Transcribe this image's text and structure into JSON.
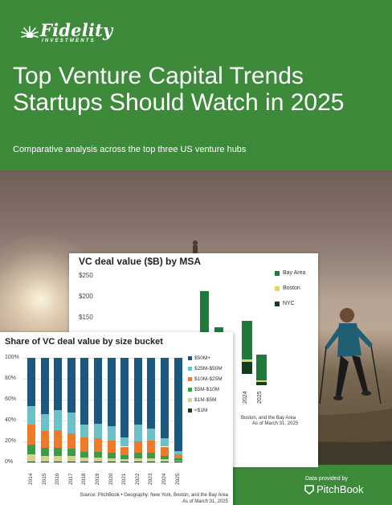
{
  "brand": {
    "logo_word": "Fidelity",
    "logo_sub": "INVESTMENTS"
  },
  "hero": {
    "title_line1": "Top Venture Capital Trends",
    "title_line2": "Startups Should Watch in 2025",
    "subtitle": "Comparative analysis across the top three US venture hubs"
  },
  "provider": {
    "label": "Data provided by",
    "name": "PitchBook"
  },
  "colors": {
    "brand_green": "#3d8a3a",
    "bay_area": "#1f7a3a",
    "boston": "#e6d36e",
    "nyc": "#0f3f1f",
    "s50m_plus": "#1b577f",
    "s25_50m": "#6cc0c8",
    "s10_25m": "#ef7a2a",
    "s5_10m": "#3c9b45",
    "s1_5m": "#d8cf8a",
    "s_lt1m": "#173a1f"
  },
  "chart_data": [
    {
      "type": "bar",
      "title": "VC deal value ($B) by MSA",
      "ytick_labels": [
        "$250",
        "$200",
        "$150"
      ],
      "x": [
        "2024",
        "2025"
      ],
      "series": [
        {
          "name": "Bay Area"
        },
        {
          "name": "Boston"
        },
        {
          "name": "NYC"
        }
      ],
      "footer_line1": "Boston, and the Bay Area",
      "footer_line2": "As of March 31, 2025"
    },
    {
      "type": "bar",
      "stacked": true,
      "title": "Share of VC deal value by size bucket",
      "ytick_labels": [
        "100%",
        "80%",
        "60%",
        "40%",
        "20%",
        "0%"
      ],
      "ylim": [
        0,
        100
      ],
      "categories": [
        "2014",
        "2015",
        "2016",
        "2017",
        "2018",
        "2019",
        "2020",
        "2021",
        "2022",
        "2023",
        "2024",
        "2025"
      ],
      "series": [
        {
          "name": "<$1M",
          "values": [
            1,
            1,
            1,
            1,
            1,
            1,
            1,
            1,
            1,
            1,
            1,
            0.5
          ]
        },
        {
          "name": "$1M-$5M",
          "values": [
            7,
            5,
            5,
            5,
            4,
            4,
            3,
            2,
            3,
            3,
            2,
            1
          ]
        },
        {
          "name": "$5M-$10M",
          "values": [
            9,
            8,
            8,
            7,
            5,
            5,
            5,
            4,
            5,
            5,
            3,
            2
          ]
        },
        {
          "name": "$10M-$25M",
          "values": [
            19,
            16,
            17,
            15,
            14,
            13,
            12,
            8,
            11,
            12,
            9,
            4
          ]
        },
        {
          "name": "$25M-$50M",
          "values": [
            18,
            16,
            19,
            20,
            12,
            14,
            14,
            9,
            16,
            11,
            8,
            3
          ]
        },
        {
          "name": "$50M+",
          "values": [
            46,
            54,
            50,
            52,
            64,
            63,
            65,
            76,
            64,
            68,
            77,
            89.5
          ]
        }
      ],
      "footer_line1": "Source: PitchBook • Geography: New York, Boston, and the Bay Area",
      "footer_line2": "As of March 31, 2025"
    }
  ]
}
